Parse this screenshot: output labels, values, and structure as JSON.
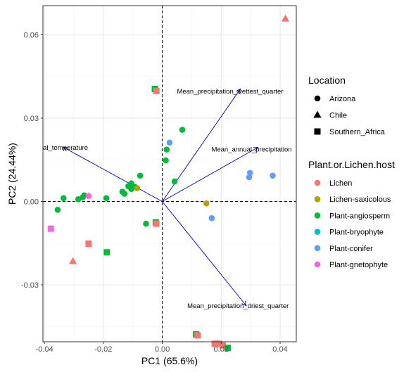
{
  "chart_data": {
    "type": "scatter",
    "title": "",
    "xlabel": "PC1 (65.6%)",
    "ylabel": "PC2 (24.44%)",
    "xlim": [
      -0.0405,
      0.0455
    ],
    "ylim": [
      -0.0505,
      0.0705
    ],
    "x_ticks": [
      -0.04,
      -0.02,
      0.0,
      0.02,
      0.04
    ],
    "x_tick_labels": [
      "-0.04",
      "-0.02",
      "0.00",
      "0.02",
      "0.04"
    ],
    "y_ticks": [
      -0.03,
      0.0,
      0.03,
      0.06
    ],
    "y_tick_labels": [
      "-0.03",
      "0.00",
      "0.03",
      "0.06"
    ],
    "grid": true,
    "reference_lines": {
      "x": 0,
      "y": 0,
      "style": "dashed"
    },
    "loadings": [
      {
        "label": "Mean_precipitation_wettest_quarter",
        "end": [
          0.0265,
          0.0405
        ],
        "label_pos": [
          0.005,
          0.0398
        ],
        "label_anchor": "start"
      },
      {
        "label": "Mean_annual_precipitation",
        "end": [
          0.0325,
          0.0195
        ],
        "label_pos": [
          0.0167,
          0.0188
        ],
        "label_anchor": "start"
      },
      {
        "label": "Mean_annual_temperature",
        "end": [
          -0.0335,
          0.0195
        ],
        "label_pos": [
          -0.0252,
          0.0195
        ],
        "label_anchor": "end"
      },
      {
        "label": "Mean_precipitation_driest_quarter",
        "end": [
          0.0285,
          -0.0375
        ],
        "label_pos": [
          0.0085,
          -0.0375
        ],
        "label_anchor": "start"
      }
    ],
    "legend": {
      "placement": "right",
      "location": {
        "title": "Location",
        "items": [
          {
            "label": "Arizona",
            "shape": "circle"
          },
          {
            "label": "Chile",
            "shape": "triangle"
          },
          {
            "label": "Southern_Africa",
            "shape": "square"
          }
        ]
      },
      "host": {
        "title": "Plant.or.Lichen.host",
        "items": [
          {
            "label": "Lichen",
            "color": "#F8766D"
          },
          {
            "label": "Lichen-saxicolous",
            "color": "#B79F00"
          },
          {
            "label": "Plant-angiosperm",
            "color": "#00BA38"
          },
          {
            "label": "Plant-bryophyte",
            "color": "#00BFC4"
          },
          {
            "label": "Plant-conifer",
            "color": "#619CFF"
          },
          {
            "label": "Plant-gnetophyte",
            "color": "#F564E3"
          }
        ]
      }
    },
    "points": [
      {
        "x": 0.0418,
        "y": 0.0658,
        "shape": "triangle",
        "host": "Lichen"
      },
      {
        "x": -0.0303,
        "y": -0.0215,
        "shape": "triangle",
        "host": "Lichen"
      },
      {
        "x": -0.0025,
        "y": 0.0405,
        "shape": "square",
        "host": "Plant-angiosperm"
      },
      {
        "x": -0.002,
        "y": 0.0398,
        "shape": "square",
        "host": "Lichen"
      },
      {
        "x": 0.0068,
        "y": 0.0258,
        "shape": "circle",
        "host": "Plant-angiosperm"
      },
      {
        "x": 0.0025,
        "y": 0.0212,
        "shape": "circle",
        "host": "Plant-conifer"
      },
      {
        "x": 0.0015,
        "y": 0.0187,
        "shape": "circle",
        "host": "Plant-angiosperm"
      },
      {
        "x": 0.0012,
        "y": 0.0148,
        "shape": "circle",
        "host": "Plant-angiosperm"
      },
      {
        "x": 0.0298,
        "y": 0.0103,
        "shape": "circle",
        "host": "Plant-conifer"
      },
      {
        "x": 0.0295,
        "y": 0.0087,
        "shape": "circle",
        "host": "Plant-conifer"
      },
      {
        "x": 0.0375,
        "y": 0.0093,
        "shape": "circle",
        "host": "Plant-conifer"
      },
      {
        "x": 0.0042,
        "y": 0.0072,
        "shape": "circle",
        "host": "Plant-angiosperm"
      },
      {
        "x": -0.0075,
        "y": 0.0093,
        "shape": "circle",
        "host": "Plant-angiosperm"
      },
      {
        "x": -0.0105,
        "y": 0.0065,
        "shape": "circle",
        "host": "Plant-angiosperm"
      },
      {
        "x": -0.0115,
        "y": 0.0055,
        "shape": "circle",
        "host": "Plant-angiosperm"
      },
      {
        "x": -0.0092,
        "y": 0.0052,
        "shape": "circle",
        "host": "Plant-angiosperm"
      },
      {
        "x": -0.0085,
        "y": 0.0048,
        "shape": "circle",
        "host": "Lichen-saxicolous"
      },
      {
        "x": -0.0105,
        "y": 0.0045,
        "shape": "circle",
        "host": "Plant-angiosperm"
      },
      {
        "x": -0.0135,
        "y": 0.0035,
        "shape": "circle",
        "host": "Plant-angiosperm"
      },
      {
        "x": -0.0128,
        "y": 0.0028,
        "shape": "circle",
        "host": "Plant-angiosperm"
      },
      {
        "x": -0.0265,
        "y": 0.0022,
        "shape": "circle",
        "host": "Plant-angiosperm"
      },
      {
        "x": -0.027,
        "y": 0.0015,
        "shape": "circle",
        "host": "Plant-angiosperm"
      },
      {
        "x": -0.0285,
        "y": 0.0008,
        "shape": "circle",
        "host": "Plant-angiosperm"
      },
      {
        "x": -0.0335,
        "y": 0.0012,
        "shape": "circle",
        "host": "Plant-angiosperm"
      },
      {
        "x": -0.019,
        "y": 0.0012,
        "shape": "circle",
        "host": "Plant-angiosperm"
      },
      {
        "x": -0.0355,
        "y": -0.003,
        "shape": "circle",
        "host": "Plant-angiosperm"
      },
      {
        "x": 0.015,
        "y": -0.0007,
        "shape": "circle",
        "host": "Lichen-saxicolous"
      },
      {
        "x": 0.0168,
        "y": -0.006,
        "shape": "circle",
        "host": "Plant-conifer"
      },
      {
        "x": -0.0022,
        "y": -0.0075,
        "shape": "square",
        "host": "Plant-angiosperm"
      },
      {
        "x": -0.002,
        "y": -0.008,
        "shape": "square",
        "host": "Lichen"
      },
      {
        "x": -0.0055,
        "y": -0.008,
        "shape": "circle",
        "host": "Plant-angiosperm"
      },
      {
        "x": -0.0378,
        "y": -0.0098,
        "shape": "square",
        "host": "Plant-gnetophyte"
      },
      {
        "x": -0.025,
        "y": -0.0152,
        "shape": "square",
        "host": "Lichen"
      },
      {
        "x": -0.0188,
        "y": -0.0183,
        "shape": "square",
        "host": "Plant-angiosperm"
      },
      {
        "x": -0.025,
        "y": 0.002,
        "shape": "circle",
        "host": "Plant-gnetophyte"
      },
      {
        "x": 0.0115,
        "y": -0.0478,
        "shape": "square",
        "host": "Plant-angiosperm"
      },
      {
        "x": 0.012,
        "y": -0.0482,
        "shape": "square",
        "host": "Lichen"
      },
      {
        "x": 0.0178,
        "y": -0.0512,
        "shape": "square",
        "host": "Lichen"
      },
      {
        "x": 0.0192,
        "y": -0.0512,
        "shape": "square",
        "host": "Lichen"
      },
      {
        "x": 0.0205,
        "y": -0.0518,
        "shape": "square",
        "host": "Lichen"
      },
      {
        "x": 0.0222,
        "y": -0.0527,
        "shape": "square",
        "host": "Plant-angiosperm"
      }
    ]
  }
}
